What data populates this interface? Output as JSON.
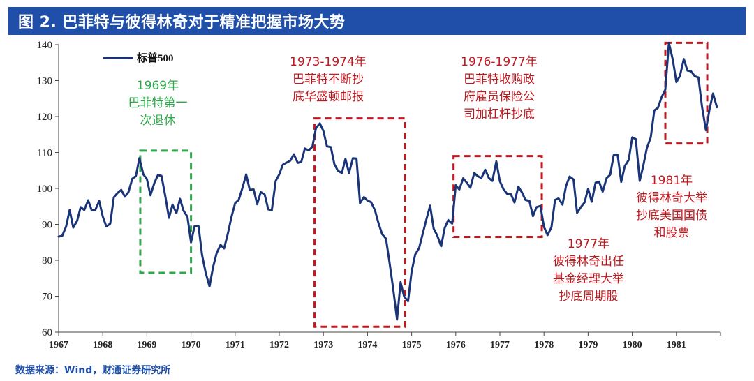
{
  "chart_title": "图 2. 巴菲特与彼得林奇对于精准把握市场大势",
  "source": "数据来源：Wind，财通证券研究所",
  "colors": {
    "title_bg": "#1f4fa8",
    "line": "#1a3478",
    "green": "#2ea84a",
    "red": "#c0181f"
  },
  "chart_data": {
    "type": "line",
    "title": "图 2. 巴菲特与彼得林奇对于精准把握市场大势",
    "xlabel": "",
    "ylabel": "",
    "xlim": [
      1967,
      1982
    ],
    "ylim": [
      60,
      140
    ],
    "yticks": [
      60,
      70,
      80,
      90,
      100,
      110,
      120,
      130,
      140
    ],
    "xticks": [
      "1967",
      "1968",
      "1969",
      "1970",
      "1971",
      "1972",
      "1973",
      "1974",
      "1975",
      "1976",
      "1977",
      "1978",
      "1979",
      "1980",
      "1981"
    ],
    "legend": {
      "label": "标普500",
      "position": "top-left"
    },
    "series": [
      {
        "name": "标普500",
        "x": [
          1967,
          1967.08,
          1967.17,
          1967.25,
          1967.33,
          1967.42,
          1967.5,
          1967.58,
          1967.67,
          1967.75,
          1967.83,
          1967.92,
          1968,
          1968.08,
          1968.17,
          1968.25,
          1968.33,
          1968.42,
          1968.5,
          1968.58,
          1968.67,
          1968.75,
          1968.83,
          1968.92,
          1969,
          1969.08,
          1969.17,
          1969.25,
          1969.33,
          1969.42,
          1969.5,
          1969.58,
          1969.67,
          1969.75,
          1969.83,
          1969.92,
          1970,
          1970.08,
          1970.17,
          1970.25,
          1970.33,
          1970.42,
          1970.5,
          1970.58,
          1970.67,
          1970.75,
          1970.83,
          1970.92,
          1971,
          1971.08,
          1971.17,
          1971.25,
          1971.33,
          1971.42,
          1971.5,
          1971.58,
          1971.67,
          1971.75,
          1971.83,
          1971.92,
          1972,
          1972.08,
          1972.17,
          1972.25,
          1972.33,
          1972.42,
          1972.5,
          1972.58,
          1972.67,
          1972.75,
          1972.83,
          1972.92,
          1973,
          1973.08,
          1973.17,
          1973.25,
          1973.33,
          1973.42,
          1973.5,
          1973.58,
          1973.67,
          1973.75,
          1973.83,
          1973.92,
          1974,
          1974.08,
          1974.17,
          1974.25,
          1974.33,
          1974.42,
          1974.5,
          1974.58,
          1974.67,
          1974.75,
          1974.83,
          1974.92,
          1975,
          1975.08,
          1975.17,
          1975.25,
          1975.33,
          1975.42,
          1975.5,
          1975.58,
          1975.67,
          1975.75,
          1975.83,
          1975.92,
          1976,
          1976.08,
          1976.17,
          1976.25,
          1976.33,
          1976.42,
          1976.5,
          1976.58,
          1976.67,
          1976.75,
          1976.83,
          1976.92,
          1977,
          1977.08,
          1977.17,
          1977.25,
          1977.33,
          1977.42,
          1977.5,
          1977.58,
          1977.67,
          1977.75,
          1977.83,
          1977.92,
          1978,
          1978.08,
          1978.17,
          1978.25,
          1978.33,
          1978.42,
          1978.5,
          1978.58,
          1978.67,
          1978.75,
          1978.83,
          1978.92,
          1979,
          1979.08,
          1979.17,
          1979.25,
          1979.33,
          1979.42,
          1979.5,
          1979.58,
          1979.67,
          1979.75,
          1979.83,
          1979.92,
          1980,
          1980.08,
          1980.17,
          1980.25,
          1980.33,
          1980.42,
          1980.5,
          1980.58,
          1980.67,
          1980.75,
          1980.83,
          1980.92,
          1981,
          1981.08,
          1981.17,
          1981.25,
          1981.33,
          1981.42,
          1981.5,
          1981.58,
          1981.67,
          1981.75,
          1981.83,
          1981.92
        ],
        "values": [
          86.6,
          86.8,
          89.4,
          94.0,
          89.1,
          91.0,
          94.8,
          94.0,
          96.7,
          93.9,
          94.0,
          96.5,
          92.2,
          89.4,
          90.2,
          97.5,
          98.7,
          99.6,
          97.7,
          98.9,
          102.7,
          103.4,
          108.4,
          103.9,
          102.6,
          98.1,
          101.5,
          103.7,
          103.5,
          97.7,
          91.8,
          95.5,
          93.1,
          97.1,
          93.8,
          92.1,
          85.0,
          89.5,
          89.6,
          81.5,
          76.6,
          72.7,
          78.1,
          82.0,
          84.3,
          83.3,
          87.2,
          92.2,
          95.9,
          96.8,
          100.3,
          103.9,
          99.6,
          99.7,
          95.6,
          99.0,
          98.3,
          94.2,
          93.9,
          102.1,
          103.9,
          106.6,
          107.2,
          107.7,
          109.5,
          107.1,
          107.4,
          111.1,
          110.6,
          111.6,
          116.7,
          118.1,
          116.0,
          111.7,
          111.5,
          106.7,
          104.9,
          104.3,
          108.2,
          104.3,
          108.4,
          108.3,
          95.9,
          97.6,
          96.6,
          96.2,
          93.9,
          90.3,
          87.3,
          86.0,
          79.3,
          72.2,
          63.5,
          73.9,
          69.9,
          68.6,
          76.9,
          81.6,
          83.4,
          87.3,
          91.2,
          95.2,
          88.8,
          86.9,
          83.9,
          89.0,
          91.2,
          90.2,
          100.9,
          99.7,
          102.8,
          101.6,
          100.2,
          104.3,
          103.4,
          102.9,
          105.2,
          102.9,
          102.1,
          107.5,
          102.0,
          99.8,
          98.4,
          98.4,
          96.1,
          100.5,
          98.9,
          96.8,
          96.5,
          92.3,
          94.8,
          95.1,
          89.3,
          87.0,
          89.2,
          96.8,
          97.2,
          95.5,
          100.7,
          103.3,
          102.5,
          93.2,
          94.7,
          96.1,
          99.9,
          96.3,
          101.6,
          101.8,
          99.1,
          102.9,
          103.8,
          109.3,
          109.3,
          101.8,
          106.2,
          107.9,
          114.2,
          113.7,
          102.1,
          106.3,
          111.2,
          114.2,
          121.7,
          122.4,
          125.5,
          127.5,
          140.5,
          135.8,
          129.6,
          131.3,
          136.0,
          132.8,
          132.6,
          131.2,
          130.9,
          122.8,
          116.2,
          121.9,
          126.4,
          122.6
        ]
      }
    ],
    "highlights": [
      {
        "name": "1969-retire",
        "color": "green",
        "x_range": [
          1968.85,
          1970.0
        ],
        "y_range": [
          76.5,
          110.5
        ],
        "label": [
          "1969年",
          "巴菲特第一",
          "次退休"
        ]
      },
      {
        "name": "1973-1974",
        "color": "red",
        "x_range": [
          1972.8,
          1974.85
        ],
        "y_range": [
          61.5,
          119.5
        ],
        "label": [
          "1973-1974年",
          "巴菲特不断抄",
          "底华盛顿邮报"
        ]
      },
      {
        "name": "1976-1977",
        "color": "red",
        "x_range": [
          1975.95,
          1977.95
        ],
        "y_range": [
          86.5,
          109.0
        ],
        "label": [
          "1976-1977年",
          "巴菲特收购政",
          "府雇员保险公",
          "司加杠杆抄底"
        ]
      },
      {
        "name": "1977-lynch",
        "color": "red",
        "x_range": null,
        "y_range": null,
        "label": [
          "1977年",
          "彼得林奇出任",
          "基金经理大举",
          "抄底周期股"
        ]
      },
      {
        "name": "1981-lynch",
        "color": "red",
        "x_range": [
          1980.75,
          1981.7
        ],
        "y_range": [
          112.5,
          140.5
        ],
        "label": [
          "1981年",
          "彼得林奇大举",
          "抄底美国国债",
          "和股票"
        ]
      }
    ]
  }
}
